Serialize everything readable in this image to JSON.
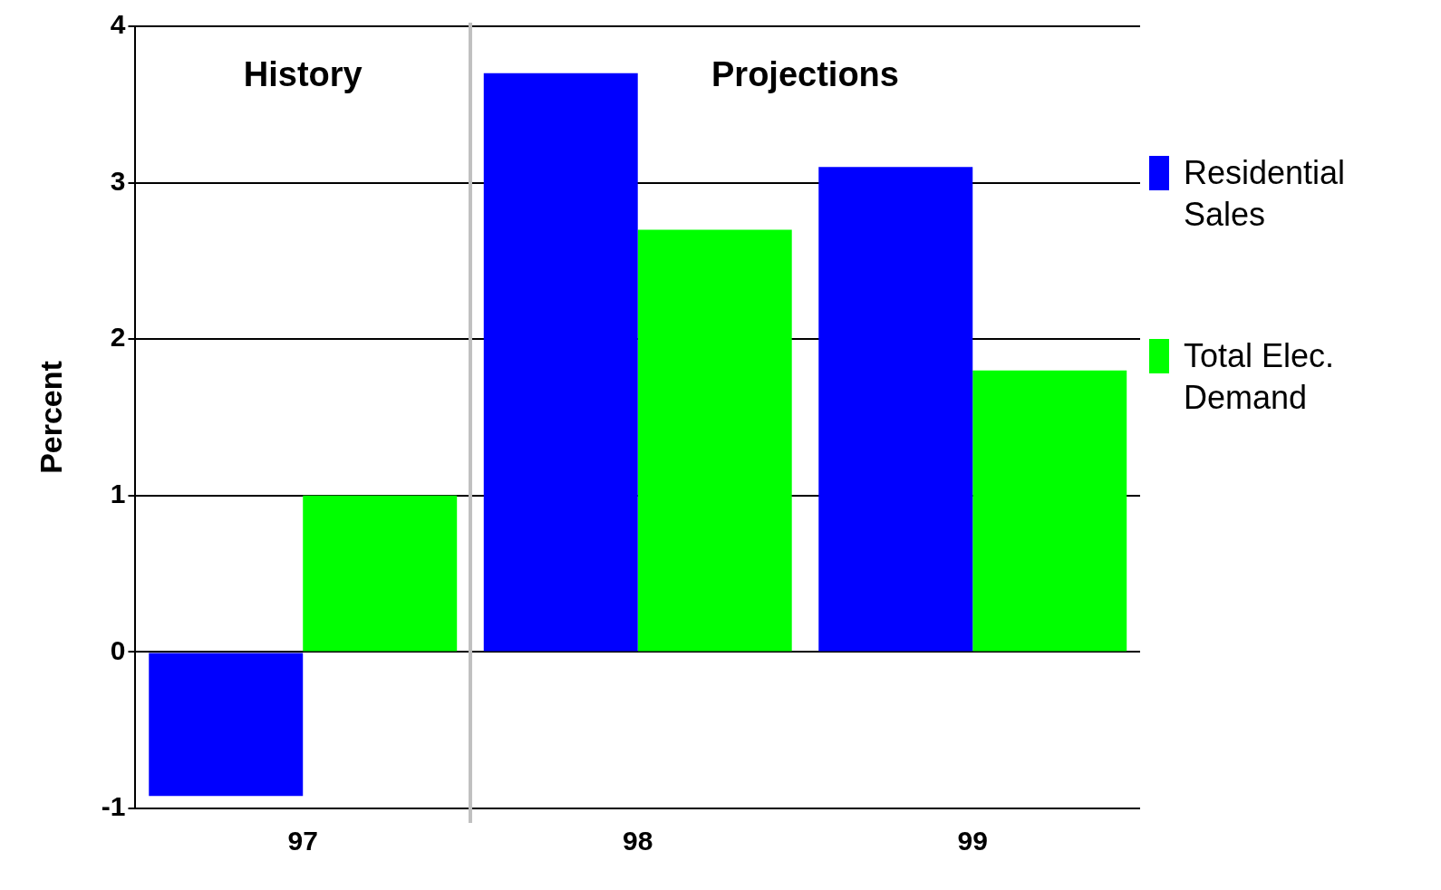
{
  "chart_data": {
    "type": "bar",
    "ylabel": "Percent",
    "x": [
      97,
      98,
      99
    ],
    "xlim": [
      96.5,
      99.5
    ],
    "xticks": [
      97,
      98,
      99
    ],
    "ylim": [
      -1,
      4
    ],
    "yticks": [
      -1,
      0,
      1,
      2,
      3,
      4
    ],
    "grid": "y",
    "legend": "right",
    "series": [
      {
        "name": "Residential Sales",
        "color": "#0000ff",
        "values": [
          -0.92,
          3.7,
          3.1
        ]
      },
      {
        "name": "Total Elec. Demand",
        "color": "#00ff00",
        "values": [
          1.0,
          2.7,
          1.8
        ]
      }
    ],
    "ref_lines": [
      {
        "axis": "x",
        "value": 97.5,
        "color": "#c0c0c0"
      }
    ],
    "annotations": [
      "History",
      "Projections"
    ]
  }
}
